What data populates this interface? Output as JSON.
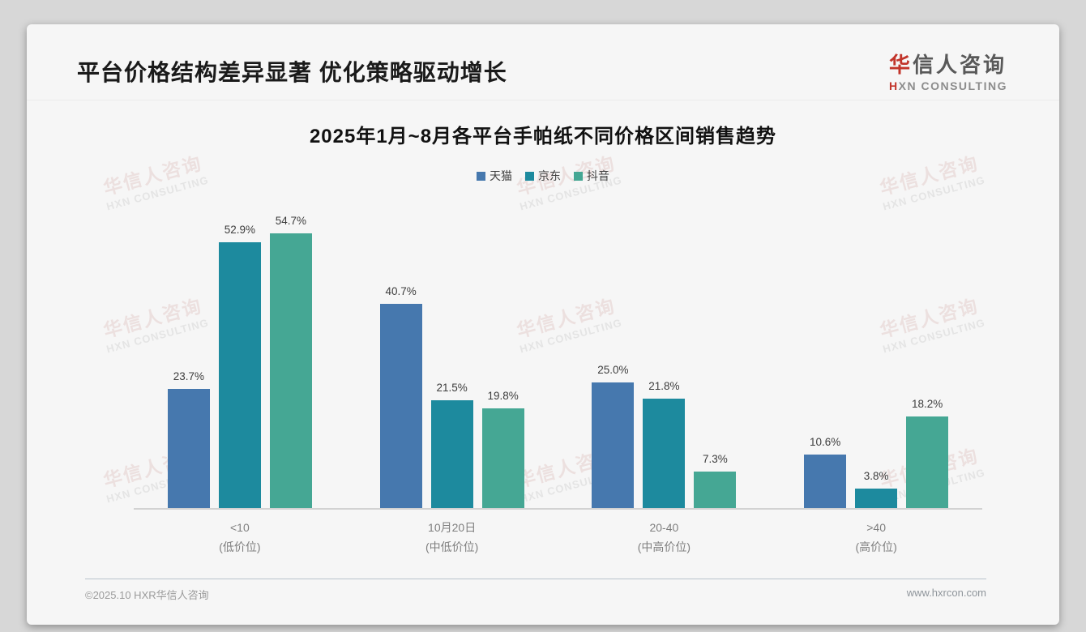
{
  "page": {
    "slide_title": "平台价格结构差异显著 优化策略驱动增长",
    "logo": {
      "cn_first": "华",
      "cn_rest": "信人咨询",
      "en_first": "H",
      "en_rest": "XN CONSULTING"
    },
    "footer": {
      "left": "©2025.10 HXR华信人咨询",
      "right": "www.hxrcon.com"
    },
    "watermark": {
      "line1": "华信人咨询",
      "line2": "HXN CONSULTING"
    }
  },
  "chart_data": {
    "type": "bar",
    "title": "2025年1月~8月各平台手帕纸不同价格区间销售趋势",
    "categories": [
      "<10",
      "10月20日",
      "20-40",
      ">40"
    ],
    "category_sublabels": [
      "(低价位)",
      "(中低价位)",
      "(中高价位)",
      "(高价位)"
    ],
    "series": [
      {
        "name": "天猫",
        "color": "#4678ae",
        "values": [
          23.7,
          40.7,
          25.0,
          10.6
        ]
      },
      {
        "name": "京东",
        "color": "#1d8a9e",
        "values": [
          52.9,
          21.5,
          21.8,
          3.8
        ]
      },
      {
        "name": "抖音",
        "color": "#45a794",
        "values": [
          54.7,
          19.8,
          7.3,
          18.2
        ]
      }
    ],
    "value_suffix": "%",
    "ylim": [
      0,
      60
    ],
    "legend_position": "top",
    "grid": false,
    "xlabel": "",
    "ylabel": ""
  }
}
